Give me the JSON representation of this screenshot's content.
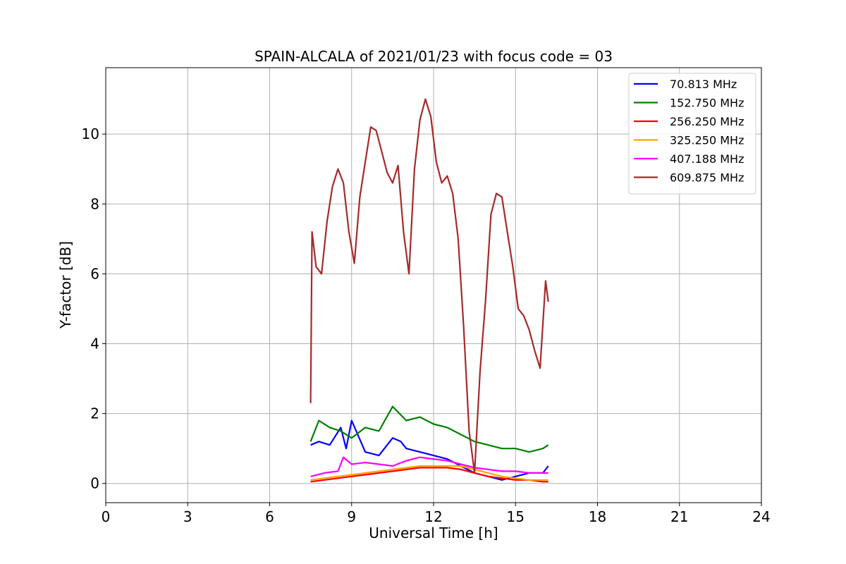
{
  "chart_data": {
    "type": "line",
    "title": "SPAIN-ALCALA of 2021/01/23 with focus code = 03",
    "xlabel": "Universal Time [h]",
    "ylabel": "Y-factor [dB]",
    "xlim": [
      0,
      24
    ],
    "ylim": [
      -0.55,
      11.9
    ],
    "xticks": [
      0,
      3,
      6,
      9,
      12,
      15,
      18,
      21,
      24
    ],
    "yticks": [
      0,
      2,
      4,
      6,
      8,
      10
    ],
    "grid": true,
    "legend_position": "top-right",
    "series": [
      {
        "name": " 70.813 MHz",
        "color": "#0000ff",
        "x": [
          7.5,
          7.8,
          8.2,
          8.6,
          8.8,
          9.0,
          9.5,
          10.0,
          10.5,
          10.8,
          11.0,
          11.5,
          12.0,
          12.5,
          13.0,
          13.5,
          14.0,
          14.5,
          15.0,
          15.5,
          16.0,
          16.2
        ],
        "y": [
          1.1,
          1.2,
          1.1,
          1.6,
          1.0,
          1.8,
          0.9,
          0.8,
          1.3,
          1.2,
          1.0,
          0.9,
          0.8,
          0.7,
          0.5,
          0.3,
          0.2,
          0.1,
          0.2,
          0.3,
          0.3,
          0.5
        ]
      },
      {
        "name": "152.750 MHz",
        "color": "#008000",
        "x": [
          7.5,
          7.8,
          8.2,
          8.6,
          9.0,
          9.5,
          10.0,
          10.5,
          11.0,
          11.5,
          12.0,
          12.5,
          13.0,
          13.5,
          14.0,
          14.5,
          15.0,
          15.5,
          16.0,
          16.2
        ],
        "y": [
          1.2,
          1.8,
          1.6,
          1.5,
          1.3,
          1.6,
          1.5,
          2.2,
          1.8,
          1.9,
          1.7,
          1.6,
          1.4,
          1.2,
          1.1,
          1.0,
          1.0,
          0.9,
          1.0,
          1.1
        ]
      },
      {
        "name": "256.250 MHz",
        "color": "#ff0000",
        "x": [
          7.5,
          8.0,
          8.5,
          9.0,
          9.5,
          10.0,
          10.5,
          11.0,
          11.5,
          12.0,
          12.5,
          13.0,
          13.5,
          14.0,
          14.5,
          15.0,
          15.5,
          16.0,
          16.2
        ],
        "y": [
          0.05,
          0.1,
          0.15,
          0.2,
          0.25,
          0.3,
          0.35,
          0.4,
          0.45,
          0.45,
          0.45,
          0.4,
          0.3,
          0.2,
          0.15,
          0.1,
          0.1,
          0.05,
          0.05
        ]
      },
      {
        "name": "325.250 MHz",
        "color": "#ffa500",
        "x": [
          7.5,
          8.0,
          8.5,
          9.0,
          9.5,
          10.0,
          10.5,
          11.0,
          11.5,
          12.0,
          12.5,
          13.0,
          13.5,
          14.0,
          14.5,
          15.0,
          15.5,
          16.0,
          16.2
        ],
        "y": [
          0.1,
          0.15,
          0.2,
          0.25,
          0.3,
          0.35,
          0.4,
          0.45,
          0.5,
          0.5,
          0.5,
          0.5,
          0.4,
          0.3,
          0.2,
          0.15,
          0.1,
          0.1,
          0.1
        ]
      },
      {
        "name": "407.188 MHz",
        "color": "#ff00ff",
        "x": [
          7.5,
          8.0,
          8.5,
          8.7,
          9.0,
          9.5,
          10.0,
          10.5,
          11.0,
          11.5,
          12.0,
          12.5,
          13.0,
          13.5,
          14.0,
          14.5,
          15.0,
          15.5,
          16.0,
          16.2
        ],
        "y": [
          0.2,
          0.3,
          0.35,
          0.75,
          0.55,
          0.6,
          0.55,
          0.5,
          0.65,
          0.75,
          0.7,
          0.65,
          0.55,
          0.45,
          0.4,
          0.35,
          0.35,
          0.3,
          0.3,
          0.3
        ]
      },
      {
        "name": "609.875 MHz",
        "color": "#a52a2a",
        "x": [
          7.5,
          7.55,
          7.7,
          7.9,
          8.1,
          8.3,
          8.5,
          8.7,
          8.9,
          9.1,
          9.3,
          9.5,
          9.7,
          9.9,
          10.1,
          10.3,
          10.5,
          10.7,
          10.9,
          11.1,
          11.3,
          11.5,
          11.7,
          11.9,
          12.1,
          12.3,
          12.5,
          12.7,
          12.9,
          13.1,
          13.3,
          13.5,
          13.7,
          13.9,
          14.1,
          14.3,
          14.5,
          14.7,
          14.9,
          15.1,
          15.3,
          15.5,
          15.7,
          15.9,
          16.1,
          16.2
        ],
        "y": [
          2.3,
          7.2,
          6.2,
          6.0,
          7.5,
          8.5,
          9.0,
          8.6,
          7.2,
          6.3,
          8.2,
          9.2,
          10.2,
          10.1,
          9.5,
          8.9,
          8.6,
          9.1,
          7.2,
          6.0,
          9.0,
          10.4,
          11.0,
          10.5,
          9.2,
          8.6,
          8.8,
          8.3,
          7.0,
          4.5,
          1.5,
          0.3,
          3.2,
          5.2,
          7.7,
          8.3,
          8.2,
          7.2,
          6.2,
          5.0,
          4.8,
          4.4,
          3.8,
          3.3,
          5.8,
          5.2
        ]
      }
    ]
  }
}
